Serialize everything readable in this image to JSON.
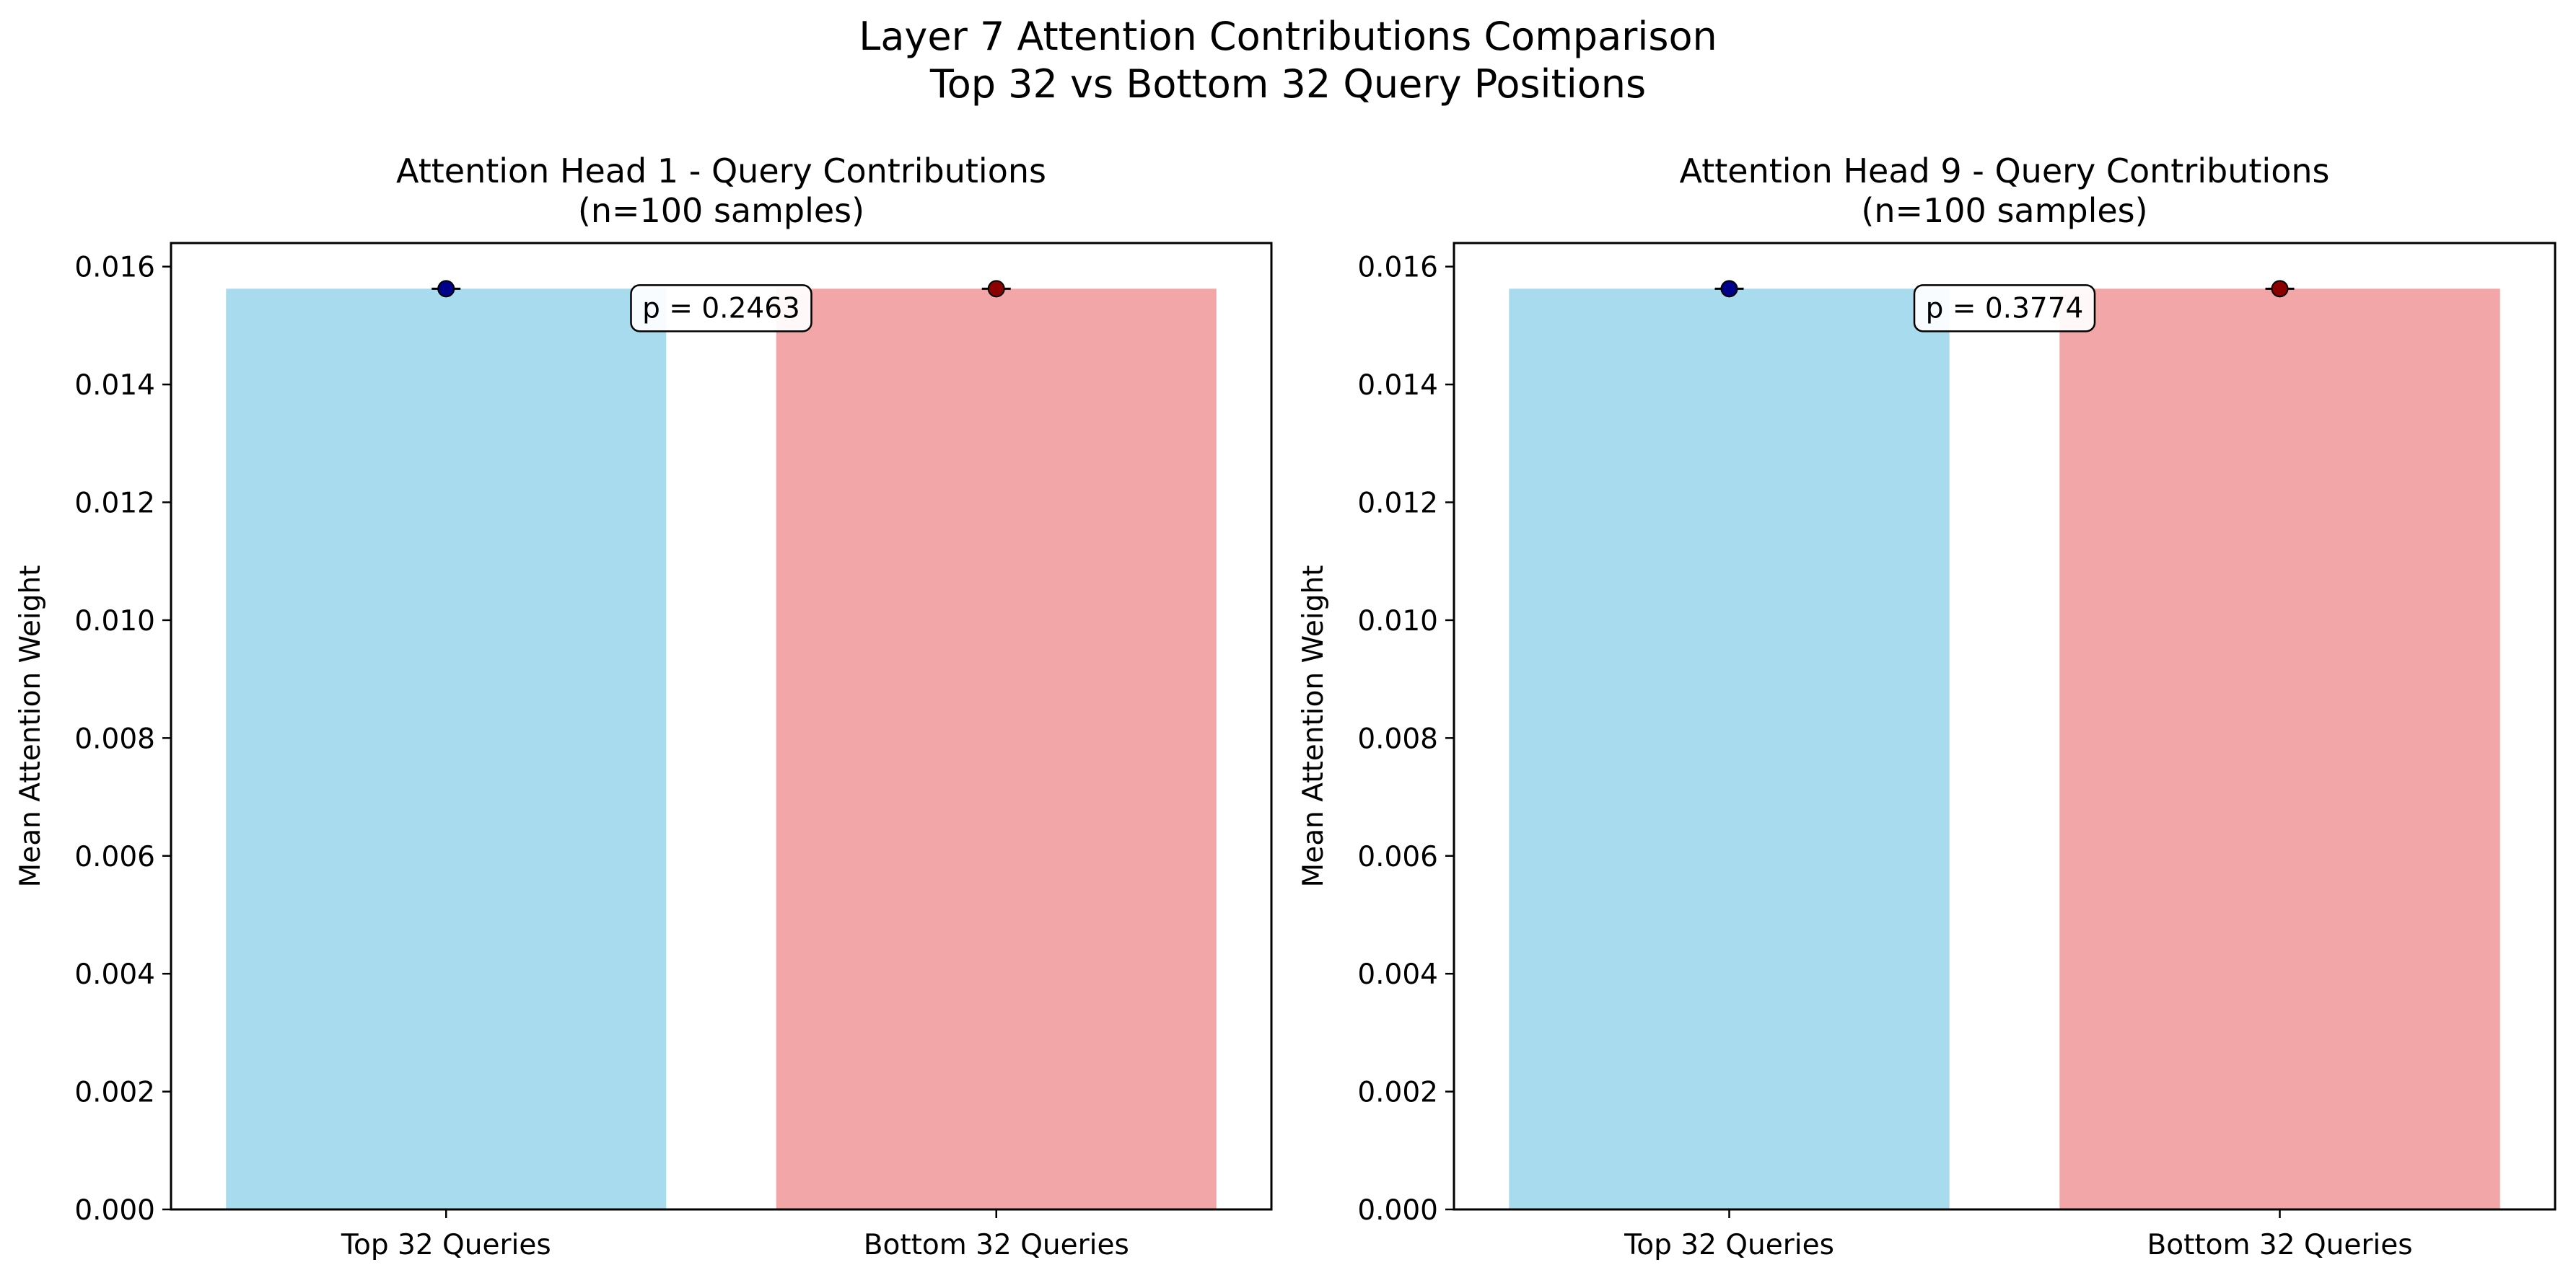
{
  "figure": {
    "title_line1": "Layer 7 Attention Contributions Comparison",
    "title_line2": "Top 32 vs Bottom 32 Query Positions"
  },
  "chart_data": [
    {
      "type": "bar",
      "title": "Attention Head 1 - Query Contributions",
      "subtitle": "(n=100 samples)",
      "xlabel": "",
      "ylabel": "Mean Attention Weight",
      "categories": [
        "Top 32 Queries",
        "Bottom 32 Queries"
      ],
      "values": [
        0.015625,
        0.015625
      ],
      "point_estimates": [
        0.015625,
        0.015625
      ],
      "ylim": [
        0,
        0.0164
      ],
      "yticks": [
        "0.000",
        "0.002",
        "0.004",
        "0.006",
        "0.008",
        "0.010",
        "0.012",
        "0.014",
        "0.016"
      ],
      "annotation": "p = 0.2463",
      "grid": false,
      "colors": {
        "bars": [
          "#a8dbed",
          "#f2a6a7"
        ],
        "markers": [
          "#00008b",
          "#8b0000"
        ]
      }
    },
    {
      "type": "bar",
      "title": "Attention Head 9 - Query Contributions",
      "subtitle": "(n=100 samples)",
      "xlabel": "",
      "ylabel": "Mean Attention Weight",
      "categories": [
        "Top 32 Queries",
        "Bottom 32 Queries"
      ],
      "values": [
        0.015625,
        0.015625
      ],
      "point_estimates": [
        0.015625,
        0.015625
      ],
      "ylim": [
        0,
        0.0164
      ],
      "yticks": [
        "0.000",
        "0.002",
        "0.004",
        "0.006",
        "0.008",
        "0.010",
        "0.012",
        "0.014",
        "0.016"
      ],
      "annotation": "p = 0.3774",
      "grid": false,
      "colors": {
        "bars": [
          "#a8dbed",
          "#f2a6a7"
        ],
        "markers": [
          "#00008b",
          "#8b0000"
        ]
      }
    }
  ]
}
